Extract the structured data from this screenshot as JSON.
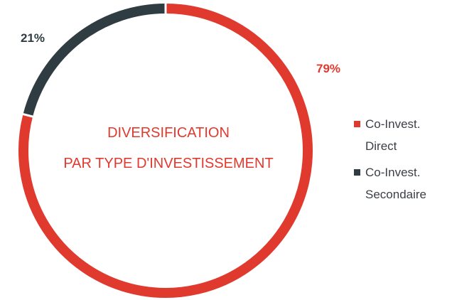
{
  "chart_data": {
    "type": "pie",
    "style": "donut",
    "center_title_lines": [
      "DIVERSIFICATION",
      "PAR TYPE D'INVESTISSEMENT"
    ],
    "series": [
      {
        "name": "Co-Invest. Direct",
        "legend_lines": [
          "Co-Invest.",
          "Direct"
        ],
        "value": 79,
        "label": "79%",
        "color": "#e03a2f"
      },
      {
        "name": "Co-Invest. Secondaire",
        "legend_lines": [
          "Co-Invest.",
          "Secondaire"
        ],
        "value": 21,
        "label": "21%",
        "color": "#2f3d43"
      }
    ],
    "legend_position": "right",
    "label_colors": {
      "red": "#e03a2f",
      "dark": "#2f3d43"
    }
  }
}
